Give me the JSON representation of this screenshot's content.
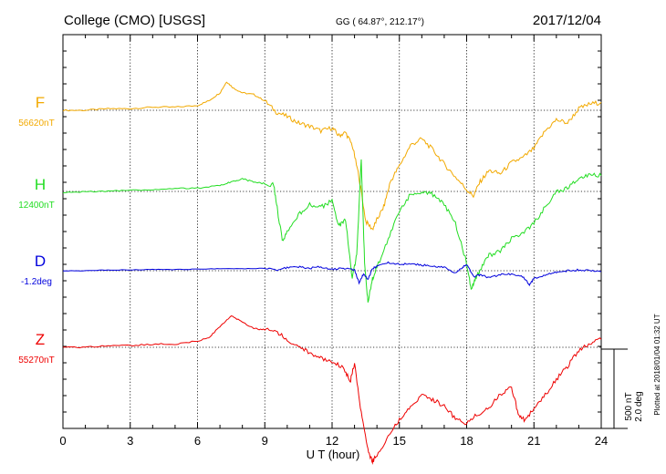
{
  "header": {
    "station": "College (CMO)  [USGS]",
    "coords": "GG ( 64.87°, 212.17°)",
    "date": "2017/12/04"
  },
  "scale": {
    "nT": "500 nT",
    "deg": "2.0 deg"
  },
  "plotted_note": "Plotted at 2018/01/04 01:32 UT",
  "chart_data": {
    "type": "line",
    "xlabel": "U T (hour)",
    "xlim": [
      0,
      24
    ],
    "xticks": [
      "0",
      "3",
      "6",
      "9",
      "12",
      "15",
      "18",
      "21",
      "24"
    ],
    "grid": true,
    "series": [
      {
        "name": "F",
        "baseline_label": "56620nT",
        "color": "#f2a900",
        "x": [
          0,
          1,
          2,
          3,
          4,
          5,
          6,
          6.5,
          7,
          7.3,
          7.6,
          8,
          8.5,
          9,
          9.5,
          10,
          10.5,
          11,
          11.5,
          12,
          12.3,
          12.6,
          12.9,
          13.2,
          13.5,
          13.8,
          14,
          14.3,
          14.6,
          15,
          15.5,
          16,
          16.5,
          17,
          17.5,
          18,
          18.3,
          18.6,
          19,
          19.5,
          20,
          20.5,
          21,
          21.5,
          22,
          22.5,
          23,
          23.5,
          24
        ],
        "values": [
          0,
          0,
          10,
          10,
          20,
          20,
          30,
          60,
          110,
          180,
          140,
          110,
          100,
          60,
          -10,
          -40,
          -80,
          -100,
          -130,
          -110,
          -160,
          -140,
          -220,
          -420,
          -700,
          -750,
          -690,
          -610,
          -450,
          -350,
          -220,
          -180,
          -250,
          -340,
          -420,
          -500,
          -540,
          -450,
          -380,
          -400,
          -330,
          -300,
          -240,
          -130,
          -60,
          -80,
          10,
          40,
          50
        ]
      },
      {
        "name": "H",
        "baseline_label": "12400nT",
        "color": "#22dd22",
        "x": [
          0,
          1,
          2,
          3,
          4,
          5,
          6,
          7,
          7.5,
          8,
          8.5,
          9,
          9.4,
          9.6,
          9.8,
          10,
          10.5,
          11,
          11.5,
          12,
          12.3,
          12.6,
          12.9,
          13.1,
          13.3,
          13.45,
          13.6,
          13.8,
          14,
          14.5,
          15,
          15.5,
          16,
          16.5,
          17,
          17.5,
          18,
          18.2,
          18.4,
          18.6,
          19,
          19.5,
          20,
          20.5,
          21,
          21.5,
          22,
          22.5,
          23,
          23.5,
          24
        ],
        "values": [
          -10,
          0,
          0,
          10,
          10,
          20,
          20,
          40,
          60,
          80,
          60,
          50,
          40,
          -150,
          -320,
          -260,
          -150,
          -80,
          -100,
          -60,
          -220,
          -180,
          -550,
          -400,
          200,
          -450,
          -700,
          -550,
          -480,
          -300,
          -120,
          -20,
          0,
          -20,
          -80,
          -200,
          -450,
          -620,
          -550,
          -500,
          -400,
          -380,
          -300,
          -260,
          -200,
          -100,
          0,
          20,
          80,
          110,
          100
        ]
      },
      {
        "name": "D",
        "baseline_label": "-1.2deg",
        "color": "#0000dd",
        "x": [
          0,
          1,
          2,
          3,
          4,
          5,
          6,
          7,
          8,
          9,
          9.5,
          10,
          10.5,
          11,
          11.5,
          12,
          12.5,
          13,
          13.2,
          13.4,
          13.6,
          13.8,
          14,
          14.5,
          15,
          15.5,
          16,
          16.5,
          17,
          17.5,
          17.8,
          18,
          18.3,
          18.6,
          19,
          19.5,
          20,
          20.5,
          20.8,
          21,
          21.5,
          22,
          22.5,
          23,
          23.5,
          24
        ],
        "values": [
          0,
          0,
          0.02,
          0.02,
          0.03,
          0.03,
          0.04,
          0.05,
          0.05,
          0.06,
          0.02,
          0.08,
          0.1,
          0.06,
          0.1,
          0.04,
          0.06,
          0.02,
          -0.3,
          -0.08,
          -0.22,
          0.05,
          0.12,
          0.2,
          0.16,
          0.18,
          0.14,
          0.12,
          0.08,
          -0.05,
          0.08,
          0.15,
          -0.15,
          -0.1,
          -0.18,
          -0.1,
          -0.08,
          -0.15,
          -0.35,
          -0.2,
          -0.1,
          -0.04,
          0,
          0.02,
          0,
          -0.02
        ]
      },
      {
        "name": "Z",
        "baseline_label": "55270nT",
        "color": "#ee0000",
        "x": [
          0,
          1,
          2,
          3,
          4,
          5,
          6,
          6.5,
          7,
          7.5,
          8,
          8.5,
          9,
          9.5,
          10,
          10.5,
          11,
          11.5,
          12,
          12.5,
          12.8,
          13,
          13.3,
          13.6,
          13.8,
          14,
          14.5,
          15,
          15.5,
          16,
          16.5,
          17,
          17.5,
          18,
          18.5,
          19,
          19.5,
          20,
          20.3,
          20.6,
          21,
          21.5,
          22,
          22.5,
          23,
          23.5,
          24
        ],
        "values": [
          0,
          0,
          10,
          10,
          20,
          20,
          40,
          60,
          130,
          200,
          160,
          120,
          110,
          100,
          50,
          10,
          -40,
          -70,
          -100,
          -120,
          -220,
          -100,
          -420,
          -650,
          -720,
          -680,
          -560,
          -460,
          -370,
          -300,
          -330,
          -370,
          -450,
          -480,
          -420,
          -380,
          -300,
          -250,
          -420,
          -460,
          -380,
          -300,
          -200,
          -120,
          -20,
          30,
          50
        ]
      }
    ]
  }
}
